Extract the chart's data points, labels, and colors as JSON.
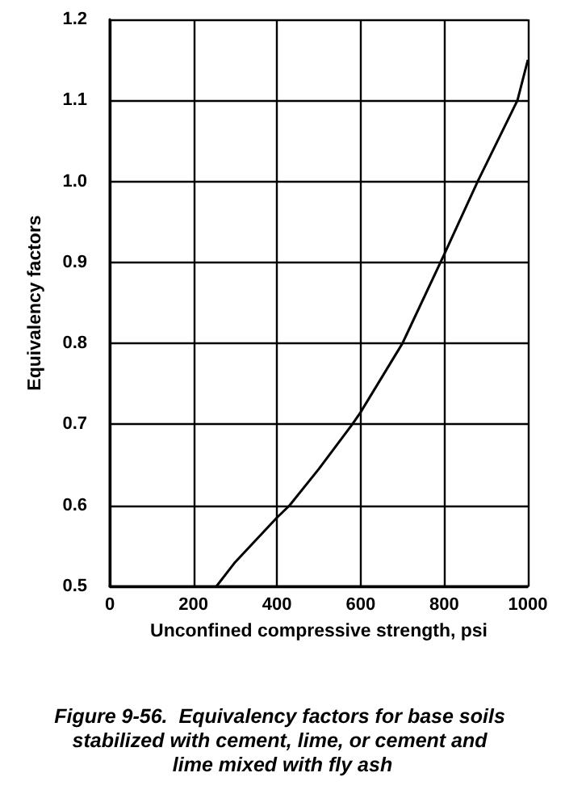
{
  "chart_data": {
    "type": "line",
    "title": "Figure 9-56.  Equivalency factors for base soils stabilized with cement, lime, or cement and lime mixed with fly ash",
    "xlabel": "Unconfined compressive strength, psi",
    "ylabel": "Equivalency factors",
    "series": [
      {
        "color": "#000000",
        "x": [
          255,
          300,
          400,
          430,
          500,
          580,
          600,
          700,
          800,
          880,
          975,
          1000
        ],
        "values": [
          0.5,
          0.53,
          0.585,
          0.6,
          0.645,
          0.7,
          0.715,
          0.8,
          0.91,
          1.0,
          1.1,
          1.15
        ]
      }
    ],
    "xlim": [
      0,
      1000
    ],
    "xticks": [
      0,
      200,
      400,
      600,
      800,
      1000
    ],
    "ylim": [
      0.5,
      1.2
    ],
    "yticks": [
      {
        "value": 0.5,
        "label": "0.5"
      },
      {
        "value": 0.6,
        "label": "0.6"
      },
      {
        "value": 0.7,
        "label": "0.7"
      },
      {
        "value": 0.8,
        "label": "0.8"
      },
      {
        "value": 0.9,
        "label": "0.9"
      },
      {
        "value": 1.0,
        "label": "1.0"
      },
      {
        "value": 1.1,
        "label": "1.1"
      },
      {
        "value": 1.2,
        "label": "1.2"
      }
    ],
    "grid": true,
    "marker": "none",
    "line_style": "solid"
  }
}
